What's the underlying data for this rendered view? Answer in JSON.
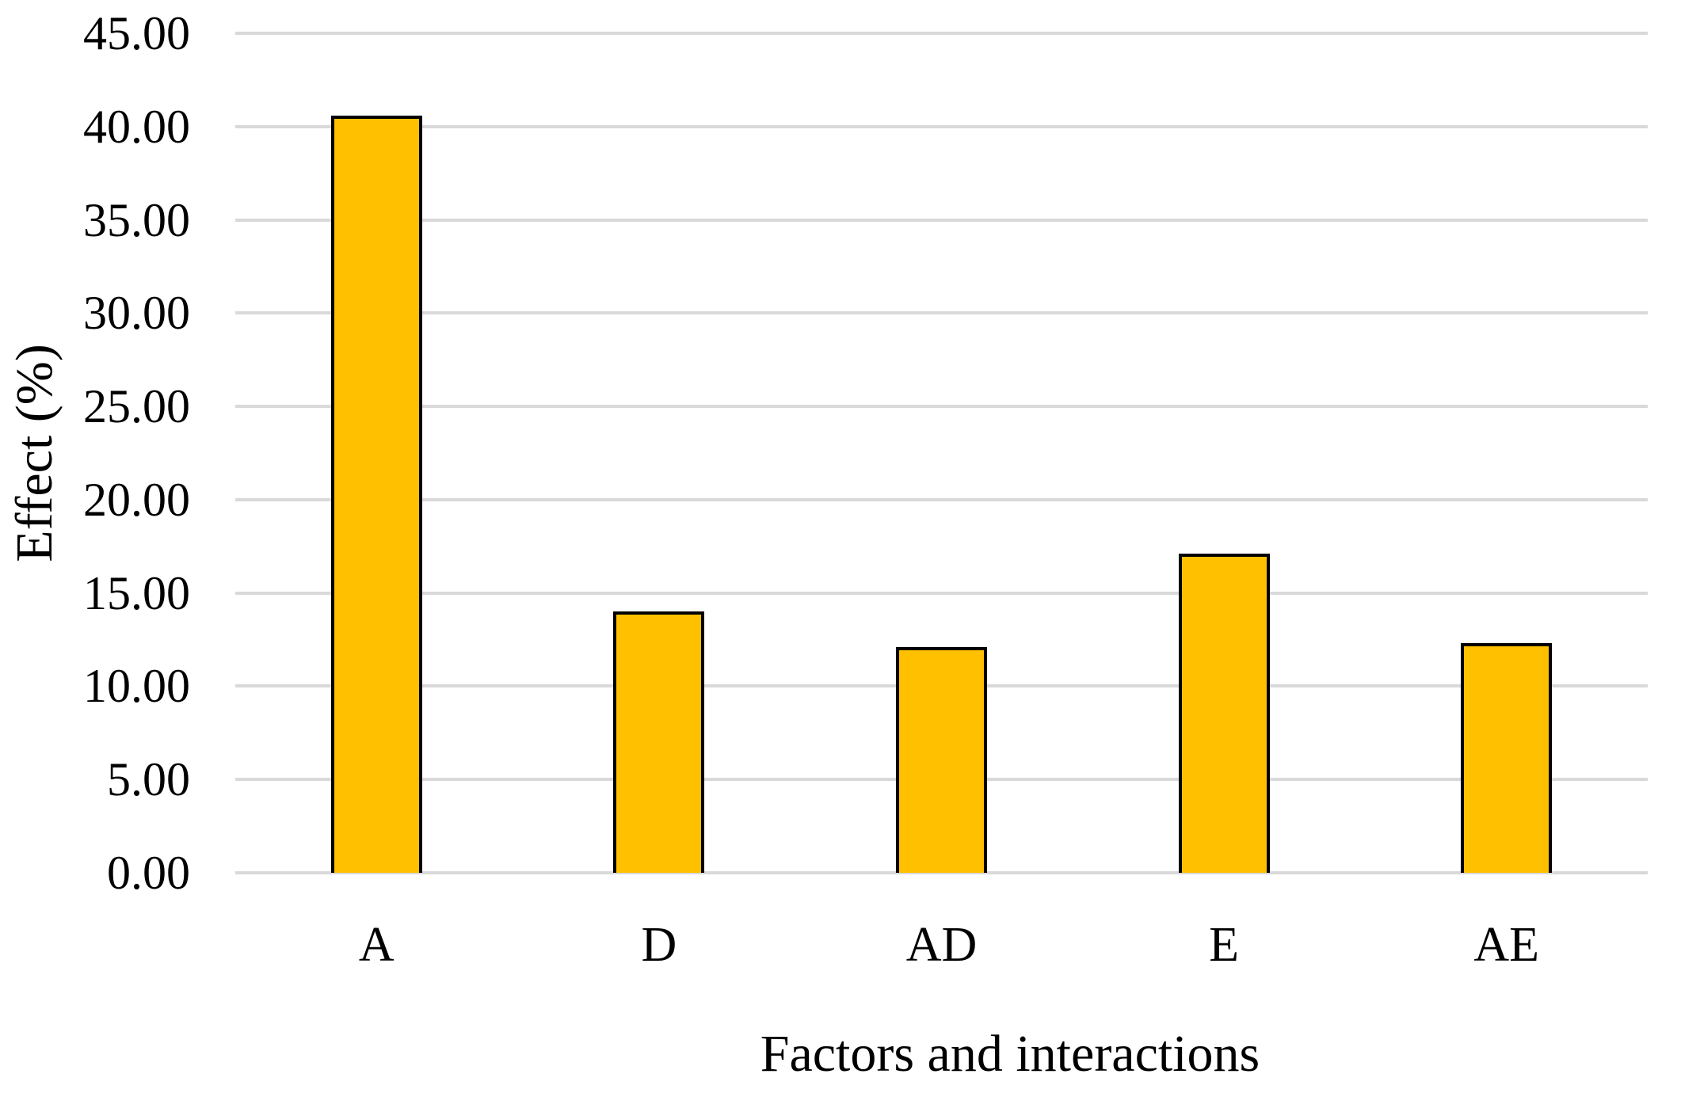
{
  "chart_data": {
    "type": "bar",
    "title": "",
    "categories": [
      "A",
      "D",
      "AD",
      "E",
      "AE"
    ],
    "values": [
      40.6,
      14.0,
      12.1,
      17.1,
      12.3
    ],
    "xlabel": "Factors and interactions",
    "ylabel": "Effect (%)",
    "ylim": [
      0,
      45
    ],
    "ytick_step": 5,
    "ytick_labels": [
      "0.00",
      "5.00",
      "10.00",
      "15.00",
      "20.00",
      "25.00",
      "30.00",
      "35.00",
      "40.00",
      "45.00"
    ],
    "grid": true,
    "legend": false,
    "series_name": "Effect",
    "colors": {
      "bar_fill": "#FFC000",
      "bar_border": "#000000",
      "gridline": "#D9D9D9",
      "text": "#000000",
      "background": "#FFFFFF"
    }
  }
}
